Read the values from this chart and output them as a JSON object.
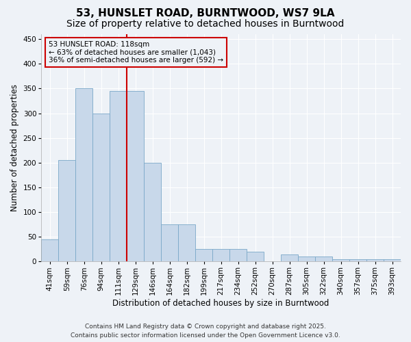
{
  "title": "53, HUNSLET ROAD, BURNTWOOD, WS7 9LA",
  "subtitle": "Size of property relative to detached houses in Burntwood",
  "xlabel": "Distribution of detached houses by size in Burntwood",
  "ylabel": "Number of detached properties",
  "categories": [
    "41sqm",
    "59sqm",
    "76sqm",
    "94sqm",
    "111sqm",
    "129sqm",
    "146sqm",
    "164sqm",
    "182sqm",
    "199sqm",
    "217sqm",
    "234sqm",
    "252sqm",
    "270sqm",
    "287sqm",
    "305sqm",
    "322sqm",
    "340sqm",
    "357sqm",
    "375sqm",
    "393sqm"
  ],
  "values": [
    45,
    205,
    350,
    300,
    345,
    345,
    200,
    75,
    75,
    25,
    25,
    25,
    20,
    0,
    15,
    10,
    10,
    5,
    5,
    5,
    5
  ],
  "bar_color": "#c8d8ea",
  "bar_edge_color": "#7aa8c8",
  "red_line_index": 4,
  "marker_line_color": "#cc0000",
  "ylim": [
    0,
    460
  ],
  "yticks": [
    0,
    50,
    100,
    150,
    200,
    250,
    300,
    350,
    400,
    450
  ],
  "annotation_text": "53 HUNSLET ROAD: 118sqm\n← 63% of detached houses are smaller (1,043)\n36% of semi-detached houses are larger (592) →",
  "annotation_box_color": "#cc0000",
  "footer_line1": "Contains HM Land Registry data © Crown copyright and database right 2025.",
  "footer_line2": "Contains public sector information licensed under the Open Government Licence v3.0.",
  "background_color": "#eef2f7",
  "grid_color": "#ffffff",
  "title_fontsize": 11,
  "subtitle_fontsize": 10,
  "axis_label_fontsize": 8.5,
  "tick_fontsize": 7.5,
  "annotation_fontsize": 7.5,
  "footer_fontsize": 6.5
}
